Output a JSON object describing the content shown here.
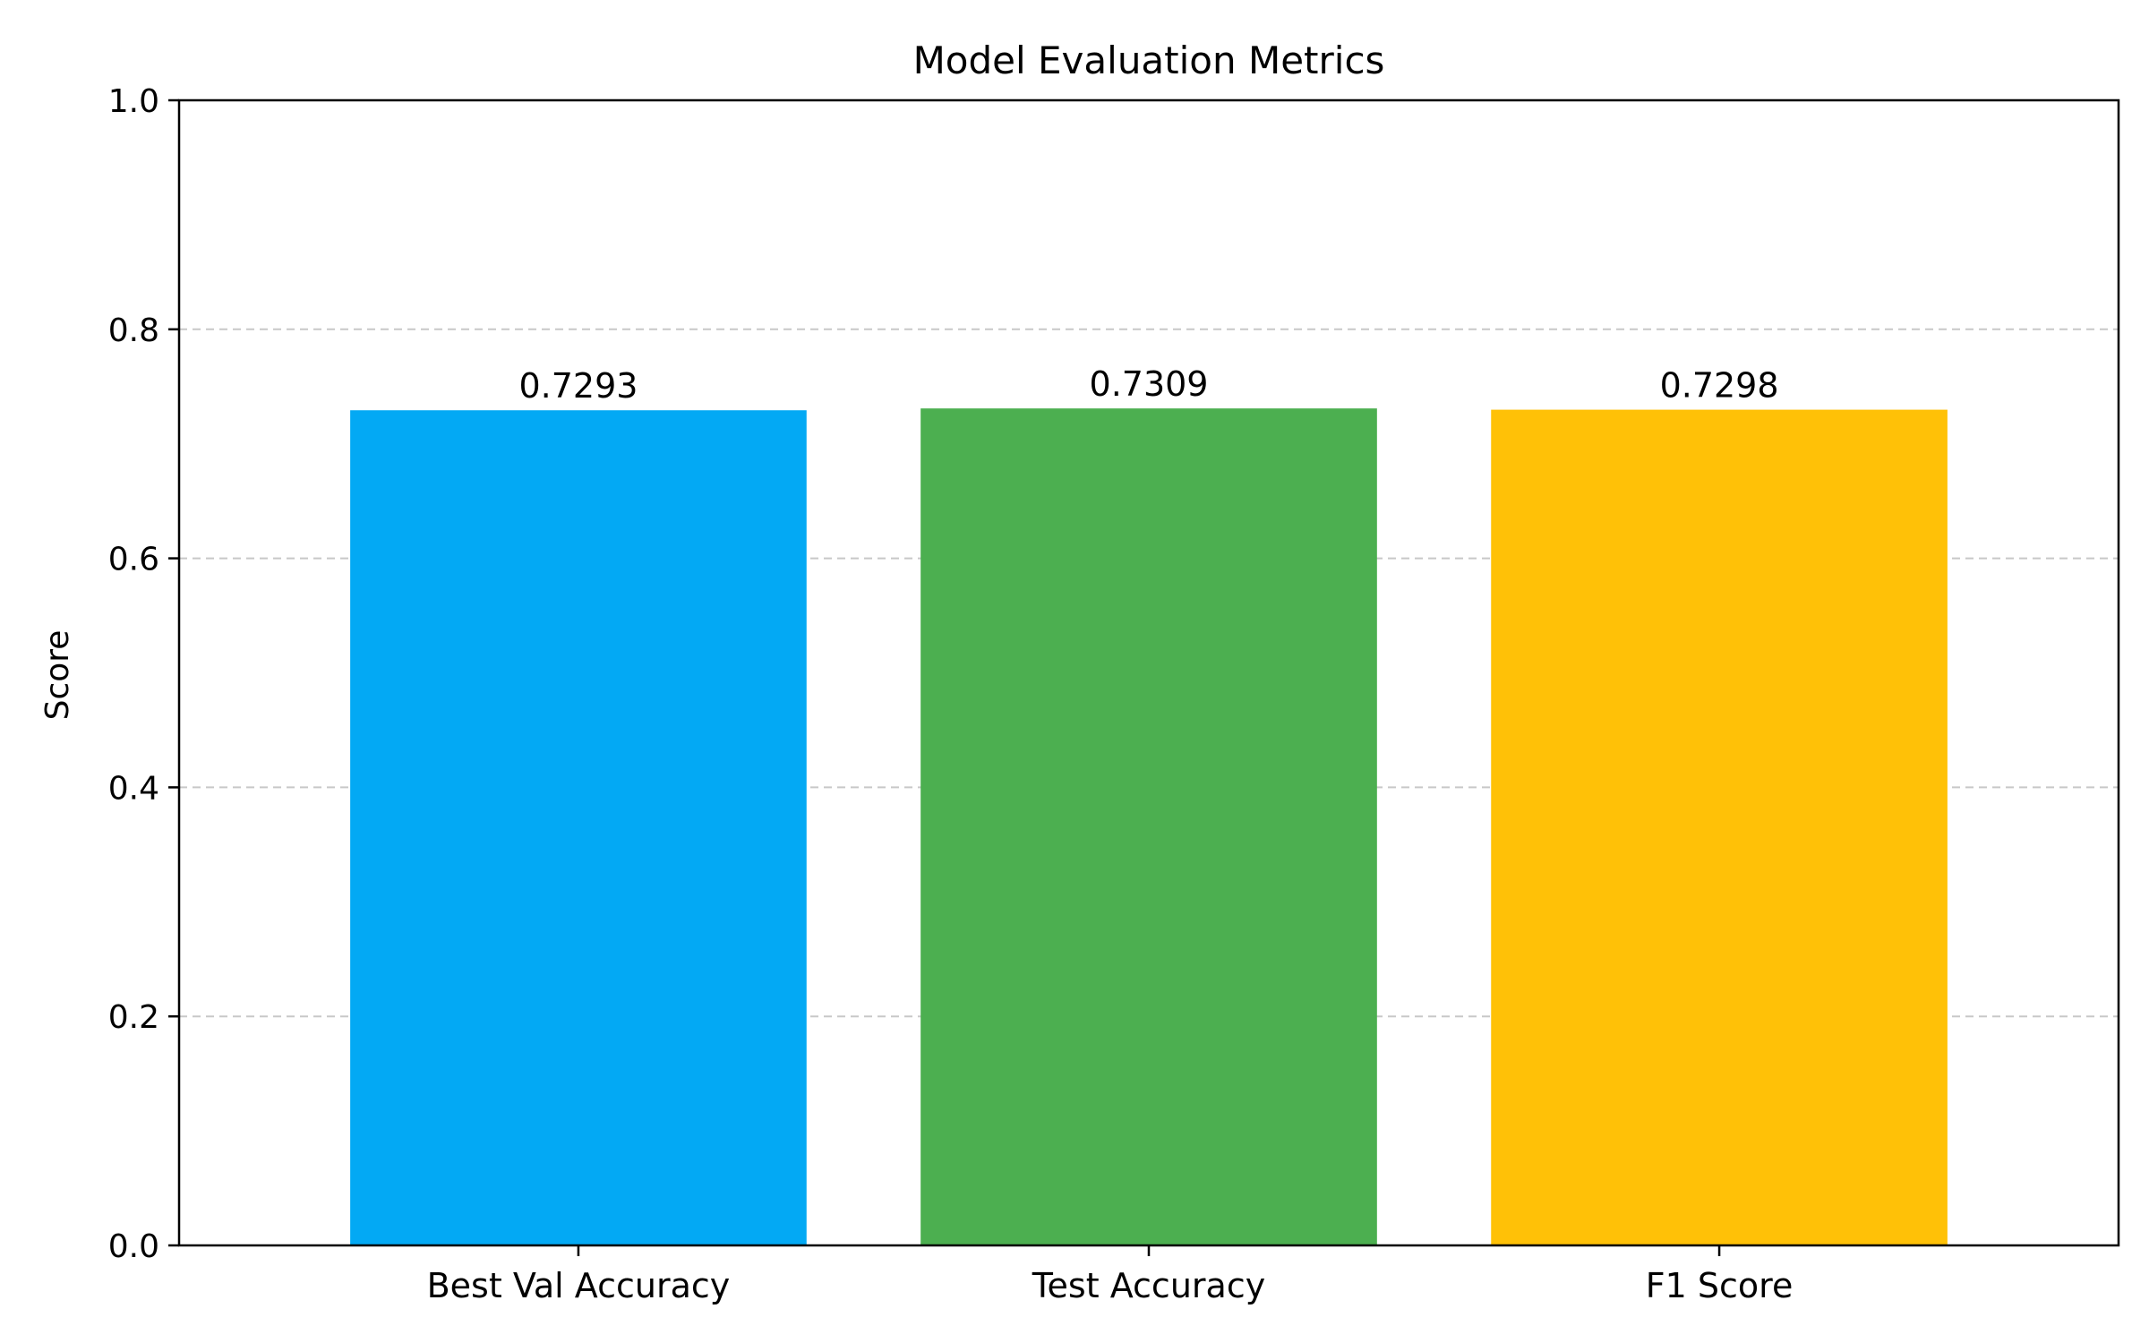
{
  "chart_data": {
    "type": "bar",
    "title": "Model Evaluation Metrics",
    "xlabel": "",
    "ylabel": "Score",
    "categories": [
      "Best Val Accuracy",
      "Test Accuracy",
      "F1 Score"
    ],
    "values": [
      0.7293,
      0.7309,
      0.7298
    ],
    "value_labels": [
      "0.7293",
      "0.7309",
      "0.7298"
    ],
    "colors": [
      "#03A9F4",
      "#4CAF50",
      "#FFC107"
    ],
    "ylim": [
      0,
      1.0
    ],
    "yticks": [
      0.0,
      0.2,
      0.4,
      0.6,
      0.8,
      1.0
    ],
    "ytick_labels": [
      "0.0",
      "0.2",
      "0.4",
      "0.6",
      "0.8",
      "1.0"
    ],
    "grid": {
      "axis": "y",
      "style": "dashed",
      "color": "#c8c8c8"
    },
    "legend": "none"
  }
}
